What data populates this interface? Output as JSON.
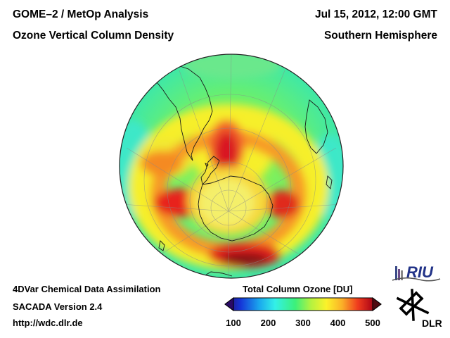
{
  "header": {
    "left_line1": "GOME–2 / MetOp Analysis",
    "left_line2": "Ozone Vertical Column Density",
    "right_line1": "Jul 15, 2012, 12:00 GMT",
    "right_line2": "Southern Hemisphere"
  },
  "footer": {
    "line1": "4DVar Chemical Data Assimilation",
    "line2": "SACADA Version 2.4",
    "line3": "http://wdc.dlr.de"
  },
  "colorbar": {
    "title": "Total Column Ozone [DU]",
    "ticks": [
      "100",
      "200",
      "300",
      "400",
      "500"
    ],
    "range": [
      100,
      500
    ],
    "colors": [
      "#2a0a66",
      "#1535d8",
      "#1aa8ee",
      "#33f0e8",
      "#3cf07a",
      "#b4f240",
      "#fbf22a",
      "#fbb028",
      "#f03c1e",
      "#b80e18",
      "#500a10"
    ]
  },
  "logos": {
    "riu": "RIU",
    "dlr": "DLR"
  },
  "map": {
    "projection": "orthographic-south-pole",
    "background_ozone_du": 310
  }
}
